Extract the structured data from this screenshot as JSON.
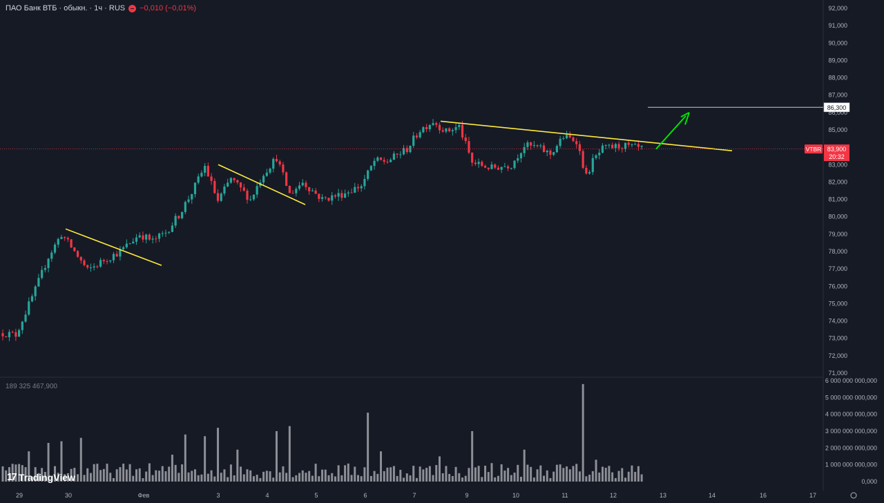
{
  "header": {
    "symbol": "ПАО Банк ВТБ · обыкн. · 1ч · RUS",
    "change": "−0,010 (−0,01%)"
  },
  "volume_label": "189 325 467,900",
  "brand": "TradingView",
  "colors": {
    "up": "#26a69a",
    "down": "#f23645",
    "bg": "#161a25",
    "grid": "#2a2e39",
    "trend": "#ffeb3b",
    "arrow": "#00e600",
    "target": "#b2b5be",
    "volume": "#8d8f96"
  },
  "price_badge": {
    "ticker": "VTBR",
    "price": "83,900",
    "timer": "20:32",
    "value": 83.9
  },
  "target_badge": {
    "label": "86,300",
    "value": 86.3
  },
  "chart_data": {
    "type": "candlestick",
    "ylim": [
      71,
      92
    ],
    "y_ticks": [
      "71,000",
      "72,000",
      "73,000",
      "74,000",
      "75,000",
      "76,000",
      "77,000",
      "78,000",
      "79,000",
      "80,000",
      "81,000",
      "82,000",
      "83,000",
      "84,000",
      "85,000",
      "86,000",
      "87,000",
      "88,000",
      "89,000",
      "90,000",
      "91,000",
      "92,000"
    ],
    "volume_ticks": [
      "0,000",
      "1 000 000 000,000",
      "2 000 000 000,000",
      "3 000 000 000,000",
      "4 000 000 000,000",
      "5 000 000 000,000",
      "6 000 000 000,000"
    ],
    "volume_ylim": [
      0,
      6000000000
    ],
    "x_ticks": [
      "29",
      "30",
      "Фев",
      "3",
      "4",
      "5",
      "6",
      "7",
      "9",
      "10",
      "11",
      "12",
      "13",
      "14",
      "16",
      "17"
    ],
    "price_path": [
      [
        0,
        73.3
      ],
      [
        4,
        73.2
      ],
      [
        10,
        75.8
      ],
      [
        14,
        77.7
      ],
      [
        18,
        79.0
      ],
      [
        22,
        78.0
      ],
      [
        26,
        76.9
      ],
      [
        31,
        77.5
      ],
      [
        36,
        78.0
      ],
      [
        42,
        79.0
      ],
      [
        46,
        78.6
      ],
      [
        50,
        79.1
      ],
      [
        54,
        80.1
      ],
      [
        58,
        81.4
      ],
      [
        62,
        82.9
      ],
      [
        66,
        80.9
      ],
      [
        70,
        82.2
      ],
      [
        76,
        81.0
      ],
      [
        80,
        82.5
      ],
      [
        84,
        83.4
      ],
      [
        88,
        81.3
      ],
      [
        92,
        82.0
      ],
      [
        98,
        81.0
      ],
      [
        104,
        81.3
      ],
      [
        110,
        81.8
      ],
      [
        114,
        83.2
      ],
      [
        118,
        83.2
      ],
      [
        124,
        83.9
      ],
      [
        128,
        85.0
      ],
      [
        132,
        85.5
      ],
      [
        136,
        84.9
      ],
      [
        140,
        85.2
      ],
      [
        144,
        83.1
      ],
      [
        150,
        82.8
      ],
      [
        156,
        83.0
      ],
      [
        160,
        84.1
      ],
      [
        164,
        84.0
      ],
      [
        168,
        83.6
      ],
      [
        172,
        84.6
      ],
      [
        176,
        84.4
      ],
      [
        179,
        82.3
      ],
      [
        181,
        83.2
      ],
      [
        184,
        83.9
      ],
      [
        190,
        84.1
      ],
      [
        196,
        83.9
      ]
    ],
    "volume_spikes": [
      [
        8,
        1800000000
      ],
      [
        14,
        2300000000
      ],
      [
        18,
        2400000000
      ],
      [
        24,
        2600000000
      ],
      [
        52,
        1600000000
      ],
      [
        56,
        2800000000
      ],
      [
        62,
        2700000000
      ],
      [
        66,
        3200000000
      ],
      [
        72,
        1900000000
      ],
      [
        84,
        3000000000
      ],
      [
        88,
        3300000000
      ],
      [
        112,
        4100000000
      ],
      [
        116,
        1800000000
      ],
      [
        134,
        1500000000
      ],
      [
        144,
        3000000000
      ],
      [
        150,
        1100000000
      ],
      [
        160,
        1900000000
      ],
      [
        170,
        1000000000
      ],
      [
        178,
        5800000000
      ],
      [
        182,
        1300000000
      ],
      [
        190,
        800000000
      ]
    ],
    "trendlines": [
      {
        "p1": [
          "30",
          79.3
        ],
        "p2": [
          "Фев",
          77.2
        ]
      },
      {
        "p1": [
          "3",
          83.0
        ],
        "p2": [
          "4",
          80.7
        ]
      },
      {
        "p1": [
          "7",
          85.5
        ],
        "p2": [
          "14",
          83.8
        ]
      }
    ],
    "target_line": {
      "value": 86.3
    }
  }
}
